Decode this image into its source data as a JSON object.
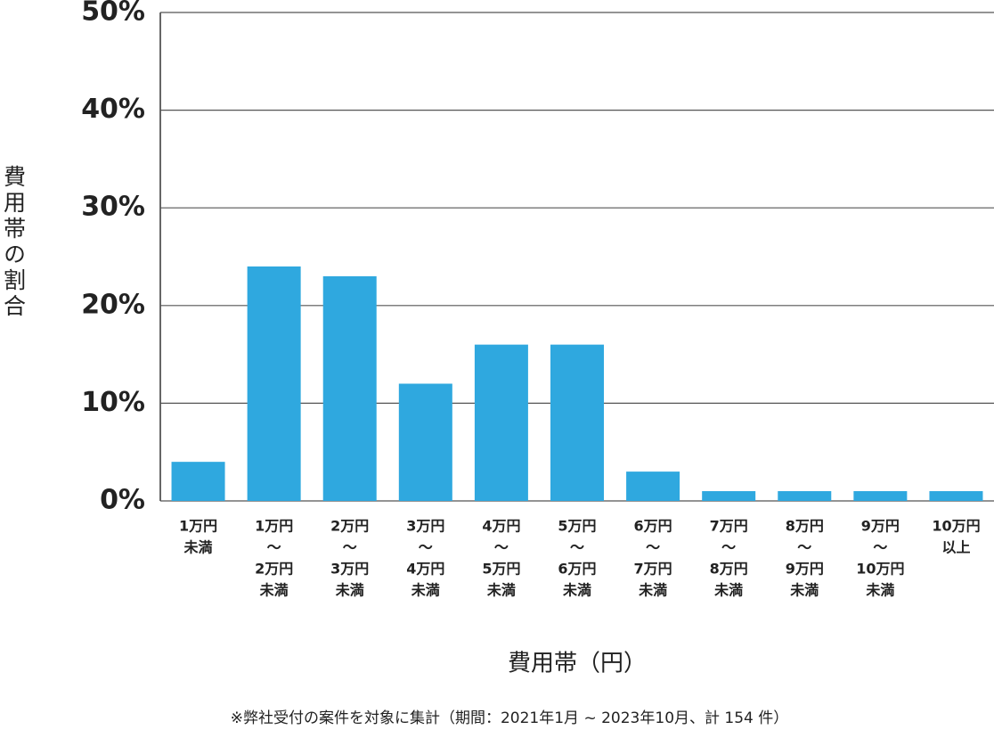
{
  "chart_data": {
    "type": "bar",
    "y_label": "費用帯の割合",
    "x_label": "費用帯（円）",
    "note": "※弊社受付の案件を対象に集計（期間：2021年1月 ~ 2023年10月、計 154 件）",
    "categories": [
      [
        "1万円",
        "未満"
      ],
      [
        "1万円",
        "〜",
        "2万円",
        "未満"
      ],
      [
        "2万円",
        "〜",
        "3万円",
        "未満"
      ],
      [
        "3万円",
        "〜",
        "4万円",
        "未満"
      ],
      [
        "4万円",
        "〜",
        "5万円",
        "未満"
      ],
      [
        "5万円",
        "〜",
        "6万円",
        "未満"
      ],
      [
        "6万円",
        "〜",
        "7万円",
        "未満"
      ],
      [
        "7万円",
        "〜",
        "8万円",
        "未満"
      ],
      [
        "8万円",
        "〜",
        "9万円",
        "未満"
      ],
      [
        "9万円",
        "〜",
        "10万円",
        "未満"
      ],
      [
        "10万円",
        "以上"
      ]
    ],
    "values": [
      4,
      24,
      23,
      12,
      16,
      16,
      3,
      1,
      1,
      1,
      1
    ],
    "color": "#2fa8df",
    "ylim": [
      0,
      50
    ],
    "yticks": [
      {
        "value": 0,
        "label": "0%"
      },
      {
        "value": 10,
        "label": "10%"
      },
      {
        "value": 20,
        "label": "20%"
      },
      {
        "value": 30,
        "label": "30%"
      },
      {
        "value": 40,
        "label": "40%"
      },
      {
        "value": 50,
        "label": "50%"
      }
    ],
    "grid": true
  }
}
